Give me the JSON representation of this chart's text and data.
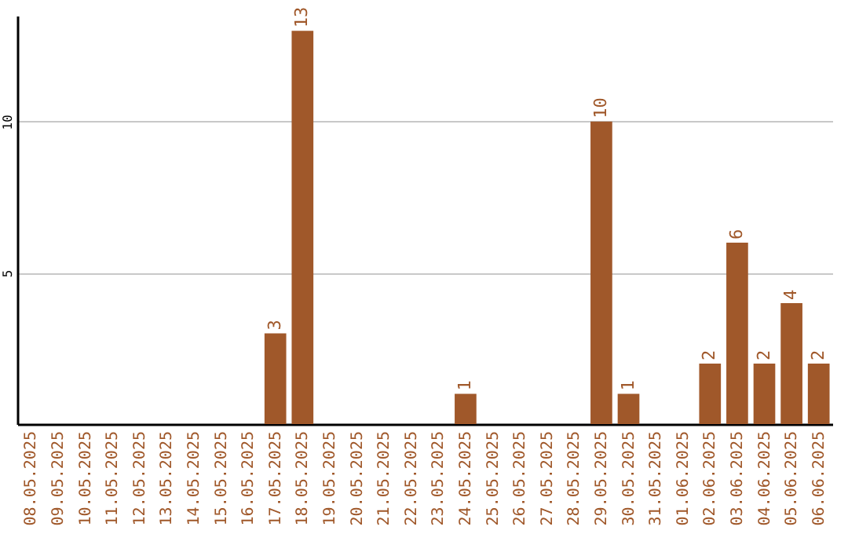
{
  "chart_data": {
    "type": "bar",
    "categories": [
      "08.05.2025",
      "09.05.2025",
      "10.05.2025",
      "11.05.2025",
      "12.05.2025",
      "13.05.2025",
      "14.05.2025",
      "15.05.2025",
      "16.05.2025",
      "17.05.2025",
      "18.05.2025",
      "19.05.2025",
      "20.05.2025",
      "21.05.2025",
      "22.05.2025",
      "23.05.2025",
      "24.05.2025",
      "25.05.2025",
      "26.05.2025",
      "27.05.2025",
      "28.05.2025",
      "29.05.2025",
      "30.05.2025",
      "31.05.2025",
      "01.06.2025",
      "02.06.2025",
      "03.06.2025",
      "04.06.2025",
      "05.06.2025",
      "06.06.2025"
    ],
    "values": [
      0,
      0,
      0,
      0,
      0,
      0,
      0,
      0,
      0,
      3,
      13,
      0,
      0,
      0,
      0,
      0,
      1,
      0,
      0,
      0,
      0,
      10,
      1,
      0,
      0,
      2,
      6,
      2,
      4,
      2
    ],
    "value_labels": [
      null,
      null,
      null,
      null,
      null,
      null,
      null,
      null,
      null,
      "3",
      "13",
      null,
      null,
      null,
      null,
      null,
      "1",
      null,
      null,
      null,
      null,
      "10",
      "1",
      null,
      null,
      "2",
      "6",
      "2",
      "4",
      "2"
    ],
    "color": "#a0582a",
    "ylim": [
      0,
      13.5
    ],
    "yticks": [
      5,
      10
    ],
    "grid": "y"
  }
}
